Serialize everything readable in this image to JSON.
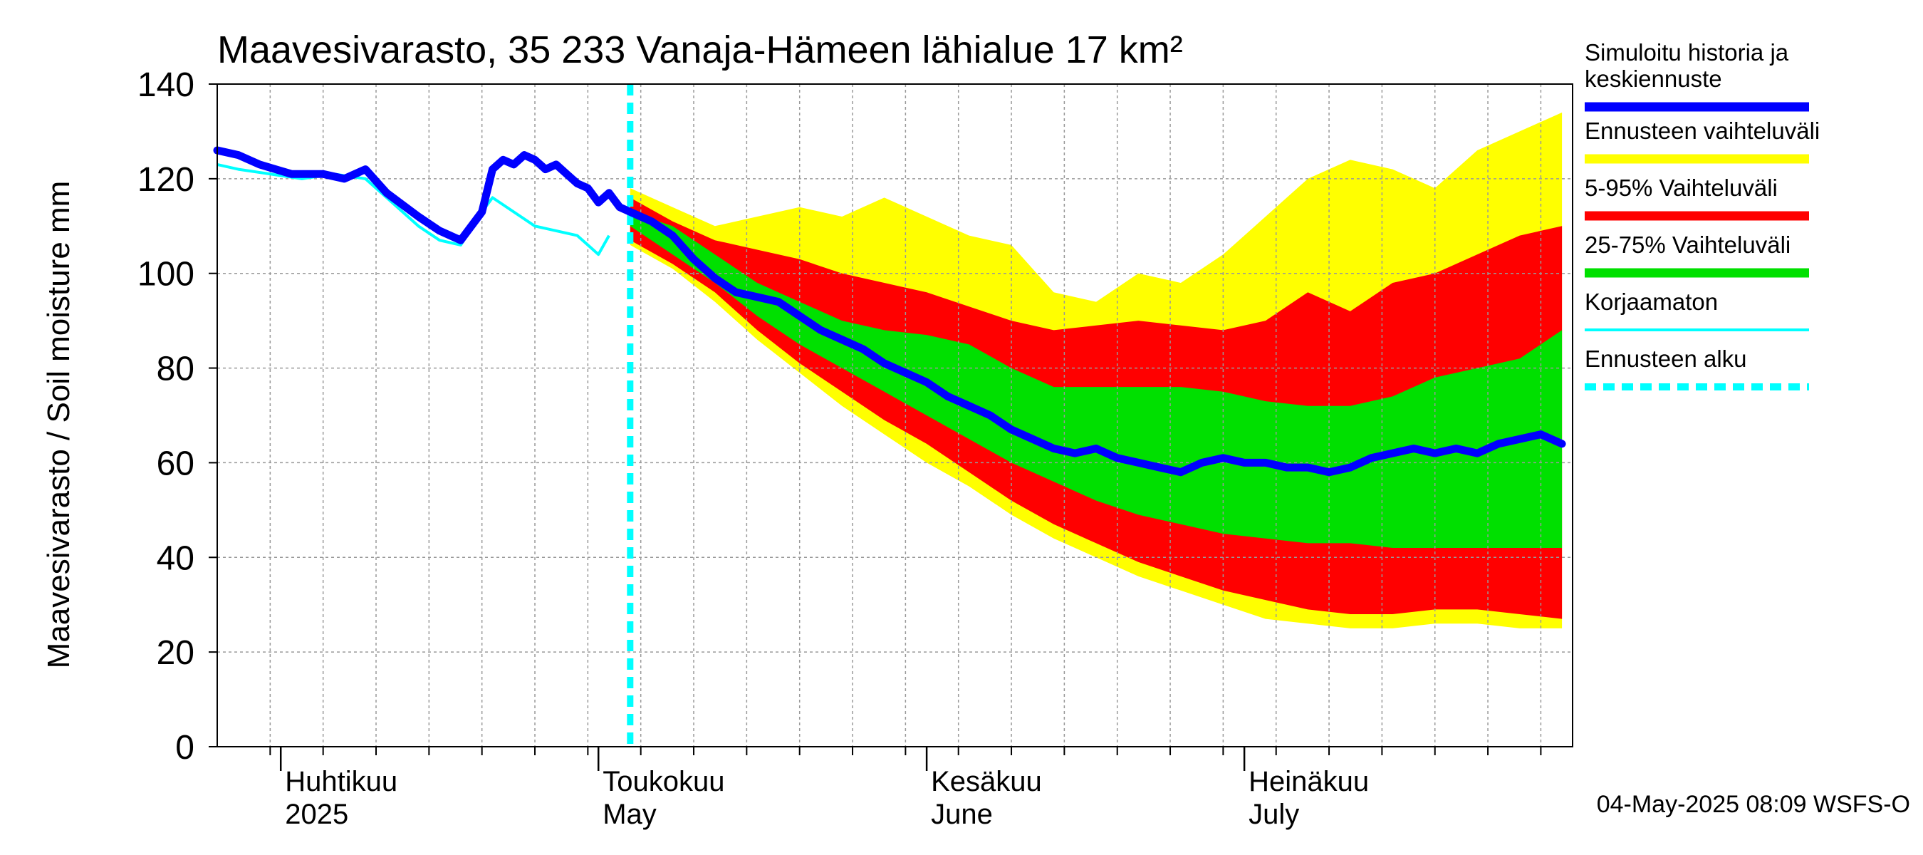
{
  "chart_data": {
    "type": "area",
    "title": "Maavesivarasto, 35 233 Vanaja-Hämeen lähialue 17 km²",
    "ylabel": "Maavesivarasto / Soil moisture   mm",
    "ylim": [
      0,
      140
    ],
    "yticks": [
      "0",
      "20",
      "40",
      "60",
      "80",
      "100",
      "120",
      "140"
    ],
    "xlim": [
      "2025-03-26",
      "2025-08-01"
    ],
    "grid": true,
    "month_labels": [
      {
        "fi": "Huhtikuu",
        "en": "2025",
        "date": "2025-04-01"
      },
      {
        "fi": "Toukokuu",
        "en": "May",
        "date": "2025-05-01"
      },
      {
        "fi": "Kesäkuu",
        "en": "June",
        "date": "2025-06-01"
      },
      {
        "fi": "Heinäkuu",
        "en": "July",
        "date": "2025-07-01"
      }
    ],
    "forecast_start": "2025-05-04",
    "legend_position": "right",
    "legend": [
      {
        "label": "Simuloitu historia ja keskiennuste",
        "color": "#0000ff",
        "style": "thick"
      },
      {
        "label": "Ennusteen vaihteluväli",
        "color": "#ffff00",
        "style": "band"
      },
      {
        "label": "5-95% Vaihteluväli",
        "color": "#ff0000",
        "style": "band"
      },
      {
        "label": "25-75% Vaihteluväli",
        "color": "#00e000",
        "style": "band"
      },
      {
        "label": "Korjaamaton",
        "color": "#00ffff",
        "style": "thin"
      },
      {
        "label": "Ennusteen alku",
        "color": "#00ffff",
        "style": "dashed"
      }
    ],
    "colors": {
      "simulated": "#0000ff",
      "range_full": "#ffff00",
      "range_5_95": "#ff0000",
      "range_25_75": "#00e000",
      "uncorrected": "#00ffff",
      "forecast_start": "#00ffff",
      "grid": "#999999"
    },
    "series": [
      {
        "name": "Simuloitu historia ja keskiennuste",
        "points": [
          [
            "2025-03-26",
            126
          ],
          [
            "2025-03-28",
            125
          ],
          [
            "2025-03-30",
            123
          ],
          [
            "2025-04-02",
            121
          ],
          [
            "2025-04-05",
            121
          ],
          [
            "2025-04-07",
            120
          ],
          [
            "2025-04-09",
            122
          ],
          [
            "2025-04-11",
            117
          ],
          [
            "2025-04-14",
            112
          ],
          [
            "2025-04-16",
            109
          ],
          [
            "2025-04-18",
            107
          ],
          [
            "2025-04-20",
            113
          ],
          [
            "2025-04-21",
            122
          ],
          [
            "2025-04-22",
            124
          ],
          [
            "2025-04-23",
            123
          ],
          [
            "2025-04-24",
            125
          ],
          [
            "2025-04-25",
            124
          ],
          [
            "2025-04-26",
            122
          ],
          [
            "2025-04-27",
            123
          ],
          [
            "2025-04-28",
            121
          ],
          [
            "2025-04-29",
            119
          ],
          [
            "2025-04-30",
            118
          ],
          [
            "2025-05-01",
            115
          ],
          [
            "2025-05-02",
            117
          ],
          [
            "2025-05-03",
            114
          ],
          [
            "2025-05-04",
            113
          ],
          [
            "2025-05-05",
            112
          ],
          [
            "2025-05-06",
            111
          ],
          [
            "2025-05-08",
            108
          ],
          [
            "2025-05-10",
            103
          ],
          [
            "2025-05-12",
            99
          ],
          [
            "2025-05-14",
            96
          ],
          [
            "2025-05-16",
            95
          ],
          [
            "2025-05-18",
            94
          ],
          [
            "2025-05-20",
            91
          ],
          [
            "2025-05-22",
            88
          ],
          [
            "2025-05-24",
            86
          ],
          [
            "2025-05-26",
            84
          ],
          [
            "2025-05-28",
            81
          ],
          [
            "2025-05-30",
            79
          ],
          [
            "2025-06-01",
            77
          ],
          [
            "2025-06-03",
            74
          ],
          [
            "2025-06-05",
            72
          ],
          [
            "2025-06-07",
            70
          ],
          [
            "2025-06-09",
            67
          ],
          [
            "2025-06-11",
            65
          ],
          [
            "2025-06-13",
            63
          ],
          [
            "2025-06-15",
            62
          ],
          [
            "2025-06-17",
            63
          ],
          [
            "2025-06-19",
            61
          ],
          [
            "2025-06-21",
            60
          ],
          [
            "2025-06-23",
            59
          ],
          [
            "2025-06-25",
            58
          ],
          [
            "2025-06-27",
            60
          ],
          [
            "2025-06-29",
            61
          ],
          [
            "2025-07-01",
            60
          ],
          [
            "2025-07-03",
            60
          ],
          [
            "2025-07-05",
            59
          ],
          [
            "2025-07-07",
            59
          ],
          [
            "2025-07-09",
            58
          ],
          [
            "2025-07-11",
            59
          ],
          [
            "2025-07-13",
            61
          ],
          [
            "2025-07-15",
            62
          ],
          [
            "2025-07-17",
            63
          ],
          [
            "2025-07-19",
            62
          ],
          [
            "2025-07-21",
            63
          ],
          [
            "2025-07-23",
            62
          ],
          [
            "2025-07-25",
            64
          ],
          [
            "2025-07-27",
            65
          ],
          [
            "2025-07-29",
            66
          ],
          [
            "2025-07-31",
            64
          ]
        ]
      },
      {
        "name": "Korjaamaton",
        "points": [
          [
            "2025-03-26",
            123
          ],
          [
            "2025-03-28",
            122
          ],
          [
            "2025-03-31",
            121
          ],
          [
            "2025-04-03",
            120
          ],
          [
            "2025-04-06",
            121
          ],
          [
            "2025-04-09",
            120
          ],
          [
            "2025-04-11",
            116
          ],
          [
            "2025-04-14",
            110
          ],
          [
            "2025-04-16",
            107
          ],
          [
            "2025-04-18",
            106
          ],
          [
            "2025-04-20",
            113
          ],
          [
            "2025-04-21",
            116
          ],
          [
            "2025-04-23",
            113
          ],
          [
            "2025-04-25",
            110
          ],
          [
            "2025-04-27",
            109
          ],
          [
            "2025-04-29",
            108
          ],
          [
            "2025-04-30",
            106
          ],
          [
            "2025-05-01",
            104
          ],
          [
            "2025-05-02",
            108
          ]
        ]
      },
      {
        "name": "Ennusteen vaihteluväli",
        "x": [
          "2025-05-04",
          "2025-05-08",
          "2025-05-12",
          "2025-05-16",
          "2025-05-20",
          "2025-05-24",
          "2025-05-28",
          "2025-06-01",
          "2025-06-05",
          "2025-06-09",
          "2025-06-13",
          "2025-06-17",
          "2025-06-21",
          "2025-06-25",
          "2025-06-29",
          "2025-07-03",
          "2025-07-07",
          "2025-07-11",
          "2025-07-15",
          "2025-07-19",
          "2025-07-23",
          "2025-07-27",
          "2025-07-31"
        ],
        "low": [
          106,
          101,
          94,
          86,
          79,
          72,
          66,
          60,
          55,
          49,
          44,
          40,
          36,
          33,
          30,
          27,
          26,
          25,
          25,
          26,
          26,
          25,
          25
        ],
        "high": [
          118,
          114,
          110,
          112,
          114,
          112,
          116,
          112,
          108,
          106,
          96,
          94,
          100,
          98,
          104,
          112,
          120,
          124,
          122,
          118,
          126,
          130,
          134
        ]
      },
      {
        "name": "5-95% Vaihteluväli",
        "x": [
          "2025-05-04",
          "2025-05-08",
          "2025-05-12",
          "2025-05-16",
          "2025-05-20",
          "2025-05-24",
          "2025-05-28",
          "2025-06-01",
          "2025-06-05",
          "2025-06-09",
          "2025-06-13",
          "2025-06-17",
          "2025-06-21",
          "2025-06-25",
          "2025-06-29",
          "2025-07-03",
          "2025-07-07",
          "2025-07-11",
          "2025-07-15",
          "2025-07-19",
          "2025-07-23",
          "2025-07-27",
          "2025-07-31"
        ],
        "low": [
          107,
          102,
          96,
          88,
          81,
          75,
          69,
          64,
          58,
          52,
          47,
          43,
          39,
          36,
          33,
          31,
          29,
          28,
          28,
          29,
          29,
          28,
          27
        ],
        "high": [
          116,
          111,
          107,
          105,
          103,
          100,
          98,
          96,
          93,
          90,
          88,
          89,
          90,
          89,
          88,
          90,
          96,
          92,
          98,
          100,
          104,
          108,
          110
        ]
      },
      {
        "name": "25-75% Vaihteluväli",
        "x": [
          "2025-05-04",
          "2025-05-08",
          "2025-05-12",
          "2025-05-16",
          "2025-05-20",
          "2025-05-24",
          "2025-05-28",
          "2025-06-01",
          "2025-06-05",
          "2025-06-09",
          "2025-06-13",
          "2025-06-17",
          "2025-06-21",
          "2025-06-25",
          "2025-06-29",
          "2025-07-03",
          "2025-07-07",
          "2025-07-11",
          "2025-07-15",
          "2025-07-19",
          "2025-07-23",
          "2025-07-27",
          "2025-07-31"
        ],
        "low": [
          110,
          104,
          98,
          91,
          85,
          80,
          75,
          70,
          65,
          60,
          56,
          52,
          49,
          47,
          45,
          44,
          43,
          43,
          42,
          42,
          42,
          42,
          42
        ],
        "high": [
          113,
          110,
          104,
          98,
          94,
          90,
          88,
          87,
          85,
          80,
          76,
          76,
          76,
          76,
          75,
          73,
          72,
          72,
          74,
          78,
          80,
          82,
          88
        ]
      }
    ]
  },
  "footer": {
    "timestamp": "04-May-2025 08:09 WSFS-O"
  }
}
